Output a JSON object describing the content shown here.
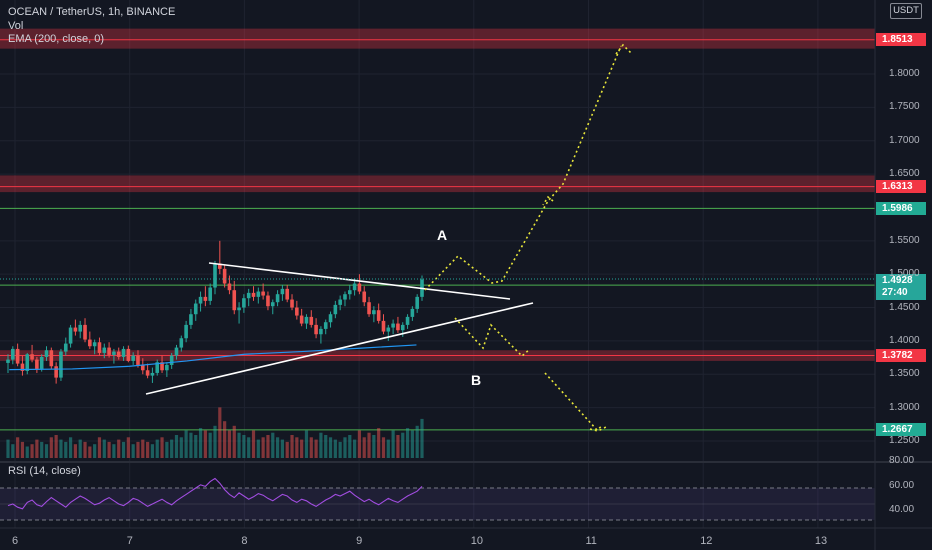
{
  "header": {
    "symbol_line": "OCEAN / TetherUS, 1h, BINANCE",
    "vol_label": "Vol",
    "ema_label": "EMA (200, close, 0)",
    "currency": "USDT"
  },
  "rsi": {
    "label": "RSI (14, close)",
    "axis": [
      "80.00",
      "60.00",
      "40.00"
    ]
  },
  "annotations": {
    "a": "A",
    "b": "B"
  },
  "last_price": {
    "price": "1.4928",
    "countdown": "27:40",
    "color": "#26a69a"
  },
  "chart_data": {
    "type": "candlestick",
    "title": "OCEAN / TetherUS, 1h, BINANCE",
    "ylim": [
      1.23,
      1.91
    ],
    "y_ticks": [
      "1.8000",
      "1.7500",
      "1.7000",
      "1.6500",
      "1.5500",
      "1.5000",
      "1.4500",
      "1.4000",
      "1.3500",
      "1.3000",
      "1.2500"
    ],
    "x_ticks": [
      "6",
      "7",
      "8",
      "9",
      "10",
      "11",
      "12",
      "13"
    ],
    "x_range": [
      5.9,
      13.7
    ],
    "levels": [
      {
        "price": 1.8513,
        "label": "1.8513",
        "color": "#f23645",
        "zone": [
          1.838,
          1.868
        ]
      },
      {
        "price": 1.6313,
        "label": "1.6313",
        "color": "#f23645",
        "zone": [
          1.623,
          1.648
        ]
      },
      {
        "price": 1.5986,
        "label": "1.5986",
        "color": "#4caf50"
      },
      {
        "price": 1.4836,
        "label": "1.4836",
        "color": "#4caf50"
      },
      {
        "price": 1.3782,
        "label": "1.3782",
        "color": "#f23645",
        "zone": [
          1.37,
          1.386
        ]
      },
      {
        "price": 1.2667,
        "label": "1.2667",
        "color": "#4caf50"
      }
    ],
    "candles": [
      [
        1.367,
        1.38,
        1.352,
        1.372
      ],
      [
        1.372,
        1.392,
        1.365,
        1.388
      ],
      [
        1.388,
        1.396,
        1.362,
        1.366
      ],
      [
        1.366,
        1.378,
        1.348,
        1.355
      ],
      [
        1.355,
        1.382,
        1.35,
        1.38
      ],
      [
        1.38,
        1.394,
        1.368,
        1.372
      ],
      [
        1.372,
        1.376,
        1.352,
        1.358
      ],
      [
        1.358,
        1.38,
        1.354,
        1.376
      ],
      [
        1.376,
        1.392,
        1.37,
        1.386
      ],
      [
        1.386,
        1.39,
        1.358,
        1.362
      ],
      [
        1.362,
        1.368,
        1.336,
        1.345
      ],
      [
        1.345,
        1.388,
        1.34,
        1.384
      ],
      [
        1.384,
        1.405,
        1.378,
        1.396
      ],
      [
        1.396,
        1.424,
        1.39,
        1.42
      ],
      [
        1.42,
        1.432,
        1.408,
        1.414
      ],
      [
        1.414,
        1.43,
        1.404,
        1.424
      ],
      [
        1.424,
        1.434,
        1.398,
        1.402
      ],
      [
        1.402,
        1.414,
        1.388,
        1.392
      ],
      [
        1.392,
        1.402,
        1.38,
        1.398
      ],
      [
        1.398,
        1.405,
        1.378,
        1.382
      ],
      [
        1.382,
        1.396,
        1.374,
        1.39
      ],
      [
        1.39,
        1.398,
        1.375,
        1.379
      ],
      [
        1.379,
        1.388,
        1.366,
        1.384
      ],
      [
        1.384,
        1.39,
        1.372,
        1.376
      ],
      [
        1.376,
        1.392,
        1.37,
        1.388
      ],
      [
        1.388,
        1.393,
        1.368,
        1.37
      ],
      [
        1.37,
        1.383,
        1.364,
        1.378
      ],
      [
        1.378,
        1.386,
        1.36,
        1.364
      ],
      [
        1.364,
        1.374,
        1.35,
        1.356
      ],
      [
        1.356,
        1.366,
        1.344,
        1.348
      ],
      [
        1.348,
        1.36,
        1.337,
        1.352
      ],
      [
        1.352,
        1.372,
        1.348,
        1.368
      ],
      [
        1.368,
        1.378,
        1.352,
        1.356
      ],
      [
        1.356,
        1.368,
        1.346,
        1.364
      ],
      [
        1.364,
        1.382,
        1.358,
        1.378
      ],
      [
        1.378,
        1.394,
        1.372,
        1.39
      ],
      [
        1.39,
        1.408,
        1.384,
        1.404
      ],
      [
        1.404,
        1.43,
        1.398,
        1.424
      ],
      [
        1.424,
        1.448,
        1.418,
        1.44
      ],
      [
        1.44,
        1.462,
        1.43,
        1.456
      ],
      [
        1.456,
        1.474,
        1.444,
        1.466
      ],
      [
        1.466,
        1.482,
        1.452,
        1.46
      ],
      [
        1.46,
        1.486,
        1.454,
        1.48
      ],
      [
        1.48,
        1.52,
        1.47,
        1.516
      ],
      [
        1.516,
        1.55,
        1.5,
        1.508
      ],
      [
        1.508,
        1.514,
        1.48,
        1.486
      ],
      [
        1.486,
        1.498,
        1.47,
        1.476
      ],
      [
        1.476,
        1.49,
        1.44,
        1.446
      ],
      [
        1.446,
        1.458,
        1.426,
        1.45
      ],
      [
        1.45,
        1.47,
        1.442,
        1.464
      ],
      [
        1.464,
        1.478,
        1.452,
        1.472
      ],
      [
        1.472,
        1.482,
        1.46,
        1.466
      ],
      [
        1.466,
        1.48,
        1.456,
        1.474
      ],
      [
        1.474,
        1.486,
        1.462,
        1.468
      ],
      [
        1.468,
        1.474,
        1.446,
        1.452
      ],
      [
        1.452,
        1.462,
        1.44,
        1.458
      ],
      [
        1.458,
        1.476,
        1.452,
        1.47
      ],
      [
        1.47,
        1.484,
        1.46,
        1.478
      ],
      [
        1.478,
        1.484,
        1.458,
        1.462
      ],
      [
        1.462,
        1.47,
        1.446,
        1.45
      ],
      [
        1.45,
        1.46,
        1.432,
        1.438
      ],
      [
        1.438,
        1.448,
        1.422,
        1.426
      ],
      [
        1.426,
        1.44,
        1.418,
        1.436
      ],
      [
        1.436,
        1.446,
        1.42,
        1.424
      ],
      [
        1.424,
        1.434,
        1.404,
        1.41
      ],
      [
        1.41,
        1.422,
        1.396,
        1.418
      ],
      [
        1.418,
        1.432,
        1.41,
        1.428
      ],
      [
        1.428,
        1.444,
        1.42,
        1.44
      ],
      [
        1.44,
        1.46,
        1.434,
        1.454
      ],
      [
        1.454,
        1.468,
        1.446,
        1.462
      ],
      [
        1.462,
        1.474,
        1.452,
        1.47
      ],
      [
        1.47,
        1.484,
        1.462,
        1.476
      ],
      [
        1.476,
        1.494,
        1.468,
        1.486
      ],
      [
        1.486,
        1.5,
        1.47,
        1.474
      ],
      [
        1.474,
        1.482,
        1.452,
        1.458
      ],
      [
        1.458,
        1.466,
        1.436,
        1.44
      ],
      [
        1.44,
        1.452,
        1.428,
        1.446
      ],
      [
        1.446,
        1.456,
        1.426,
        1.43
      ],
      [
        1.43,
        1.44,
        1.41,
        1.414
      ],
      [
        1.414,
        1.424,
        1.4,
        1.42
      ],
      [
        1.42,
        1.432,
        1.41,
        1.426
      ],
      [
        1.426,
        1.436,
        1.412,
        1.416
      ],
      [
        1.416,
        1.428,
        1.406,
        1.424
      ],
      [
        1.424,
        1.44,
        1.418,
        1.436
      ],
      [
        1.436,
        1.452,
        1.43,
        1.448
      ],
      [
        1.448,
        1.47,
        1.442,
        1.466
      ],
      [
        1.466,
        1.498,
        1.46,
        1.492
      ]
    ],
    "volumes": [
      8,
      6,
      9,
      7,
      5,
      6,
      8,
      7,
      6,
      9,
      10,
      8,
      7,
      9,
      6,
      8,
      7,
      5,
      6,
      9,
      8,
      7,
      6,
      8,
      7,
      9,
      6,
      7,
      8,
      7,
      6,
      8,
      9,
      7,
      8,
      10,
      9,
      12,
      11,
      10,
      13,
      12,
      11,
      14,
      22,
      16,
      12,
      14,
      11,
      10,
      9,
      12,
      8,
      9,
      10,
      11,
      9,
      8,
      7,
      10,
      9,
      8,
      12,
      9,
      8,
      11,
      10,
      9,
      8,
      7,
      9,
      10,
      8,
      12,
      9,
      11,
      10,
      13,
      9,
      8,
      12,
      10,
      11,
      13,
      12,
      14,
      17
    ],
    "ema": [
      [
        5.95,
        1.357
      ],
      [
        6.5,
        1.358
      ],
      [
        7.0,
        1.362
      ],
      [
        7.5,
        1.37
      ],
      [
        8.0,
        1.38
      ],
      [
        8.5,
        1.384
      ],
      [
        9.0,
        1.389
      ],
      [
        9.5,
        1.394
      ]
    ],
    "rsi": [
      48,
      50,
      46,
      44,
      52,
      55,
      49,
      47,
      53,
      58,
      54,
      50,
      46,
      52,
      56,
      60,
      57,
      53,
      49,
      51,
      55,
      58,
      54,
      50,
      48,
      52,
      57,
      55,
      51,
      47,
      50,
      53,
      56,
      52,
      49,
      54,
      58,
      62,
      66,
      70,
      74,
      72,
      78,
      82,
      76,
      68,
      62,
      58,
      64,
      60,
      56,
      59,
      63,
      61,
      57,
      54,
      58,
      62,
      60,
      55,
      52,
      56,
      54,
      50,
      47,
      51,
      55,
      58,
      62,
      60,
      63,
      66,
      61,
      57,
      53,
      56,
      52,
      49,
      53,
      57,
      54,
      52,
      56,
      60,
      63,
      66,
      72
    ],
    "rsi_ylim": [
      20,
      95
    ]
  }
}
